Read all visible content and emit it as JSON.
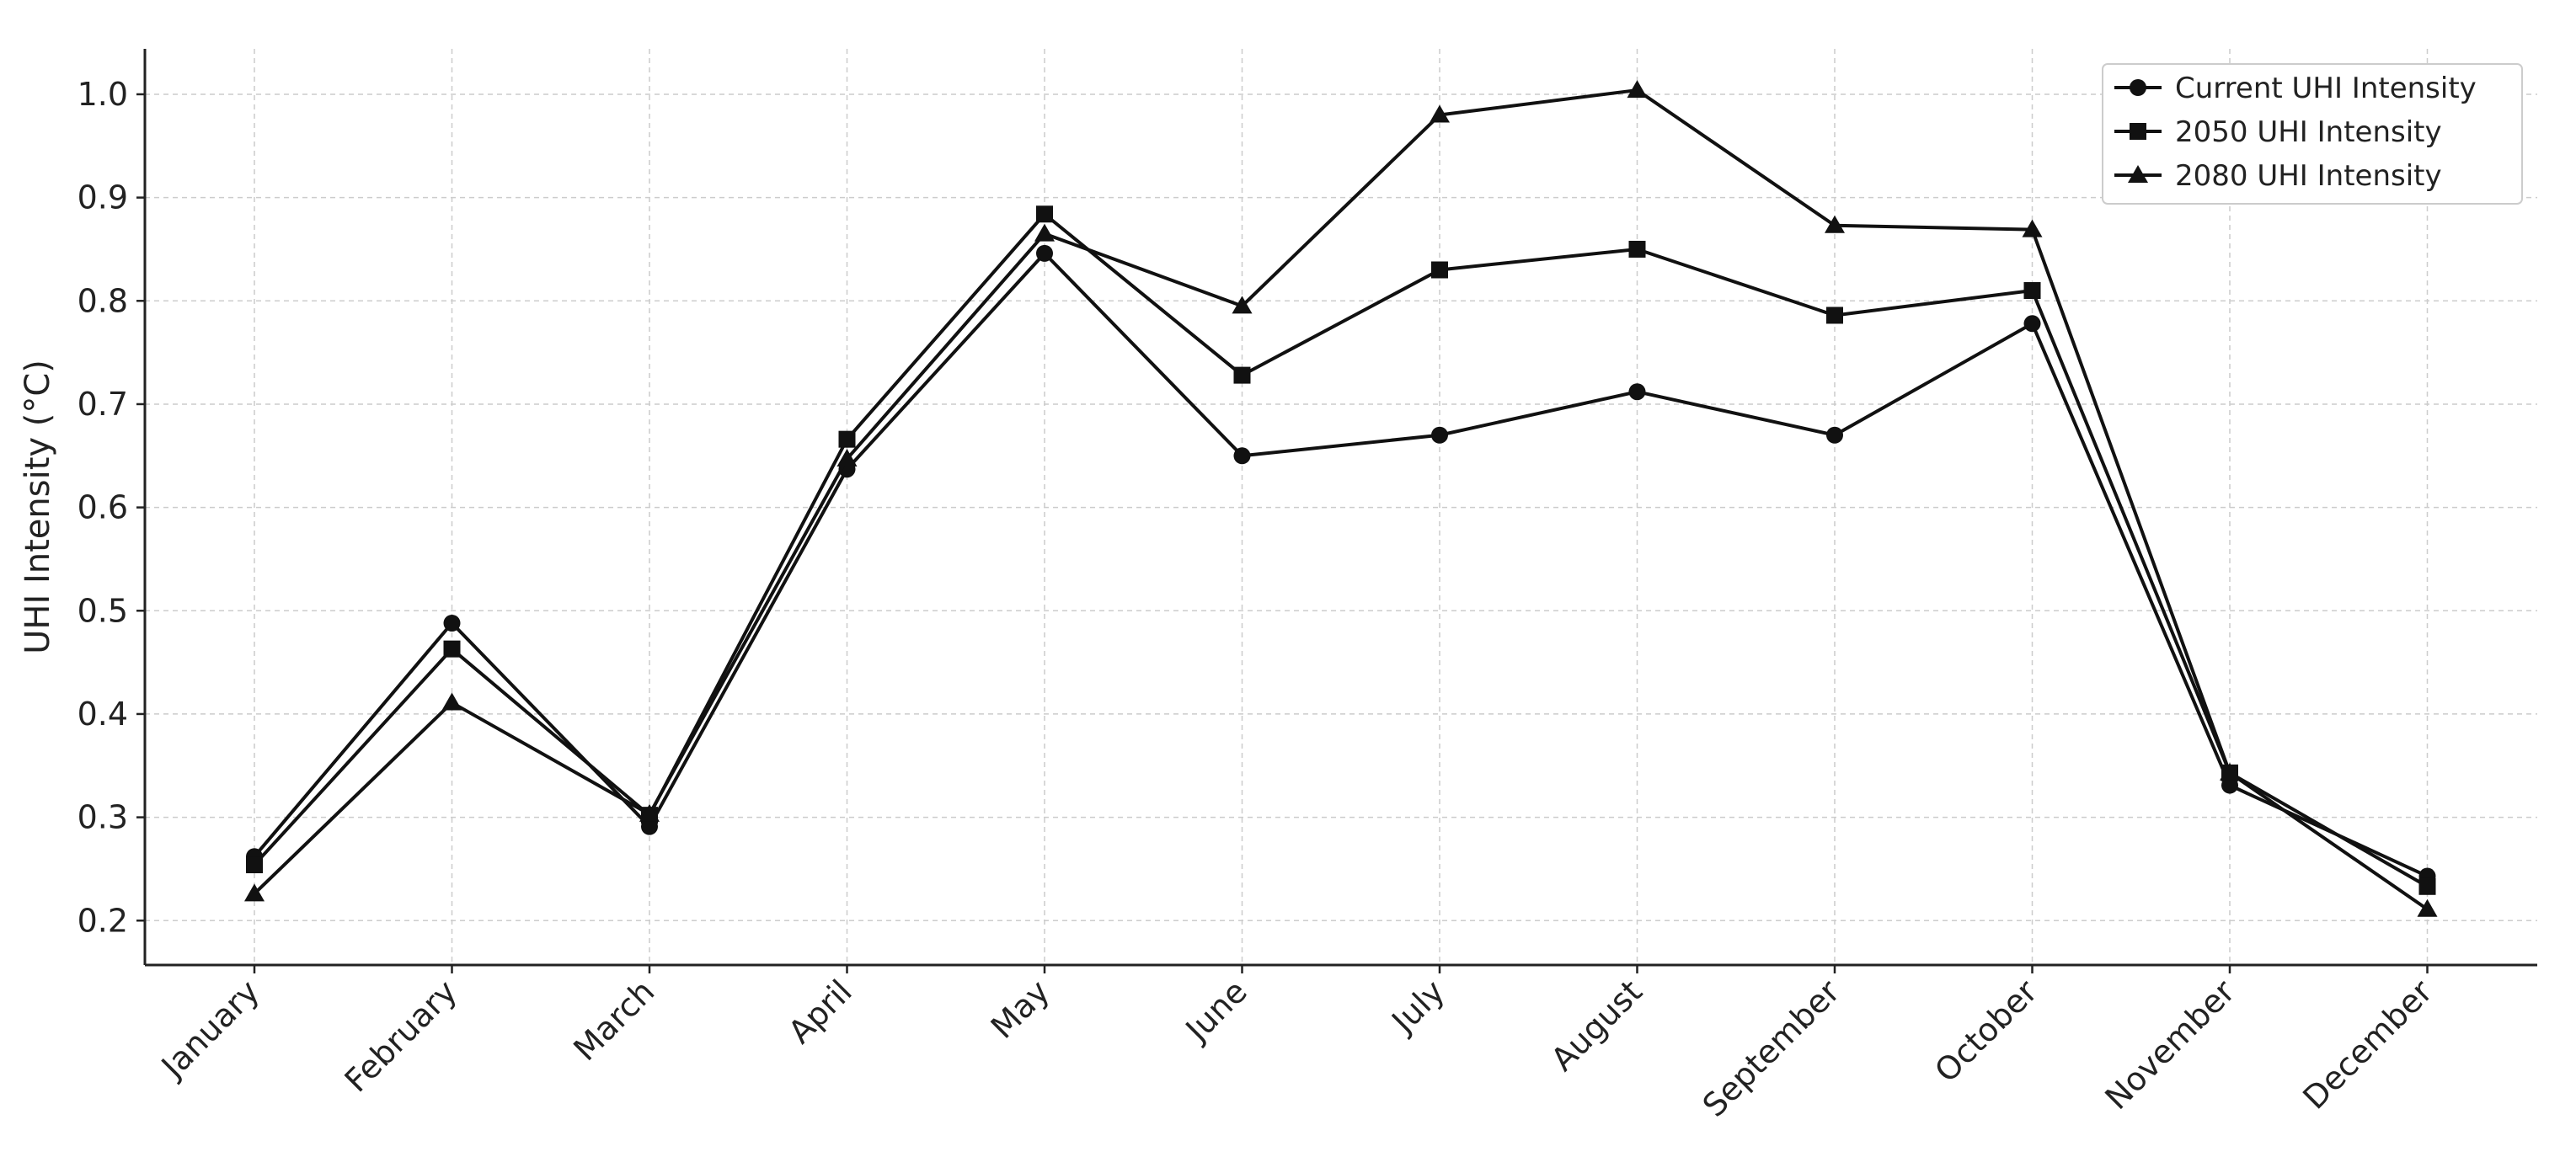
{
  "chart_data": {
    "type": "line",
    "title": "",
    "xlabel": "",
    "ylabel": "UHI Intensity (°C)",
    "categories": [
      "January",
      "February",
      "March",
      "April",
      "May",
      "June",
      "July",
      "August",
      "September",
      "October",
      "November",
      "December"
    ],
    "series": [
      {
        "name": "Current UHI Intensity",
        "marker": "circle",
        "values": [
          0.262,
          0.488,
          0.291,
          0.637,
          0.846,
          0.65,
          0.67,
          0.712,
          0.67,
          0.778,
          0.331,
          0.243
        ]
      },
      {
        "name": "2050 UHI Intensity",
        "marker": "square",
        "values": [
          0.254,
          0.463,
          0.302,
          0.666,
          0.884,
          0.728,
          0.83,
          0.85,
          0.786,
          0.81,
          0.343,
          0.233
        ]
      },
      {
        "name": "2080 UHI Intensity",
        "marker": "triangle",
        "values": [
          0.226,
          0.411,
          0.303,
          0.647,
          0.865,
          0.795,
          0.98,
          1.004,
          0.873,
          0.869,
          0.343,
          0.211
        ]
      }
    ],
    "ylim": [
      0.157,
      1.044
    ],
    "yticks": [
      0.2,
      0.3,
      0.4,
      0.5,
      0.6,
      0.7,
      0.8,
      0.9,
      1.0
    ],
    "ytick_labels": [
      "0.2",
      "0.3",
      "0.4",
      "0.5",
      "0.6",
      "0.7",
      "0.8",
      "0.9",
      "1.0"
    ],
    "grid": true,
    "legend_position": "top-right",
    "colors": {
      "series": "#111111",
      "grid": "#cccccc",
      "axis": "#222222"
    }
  }
}
